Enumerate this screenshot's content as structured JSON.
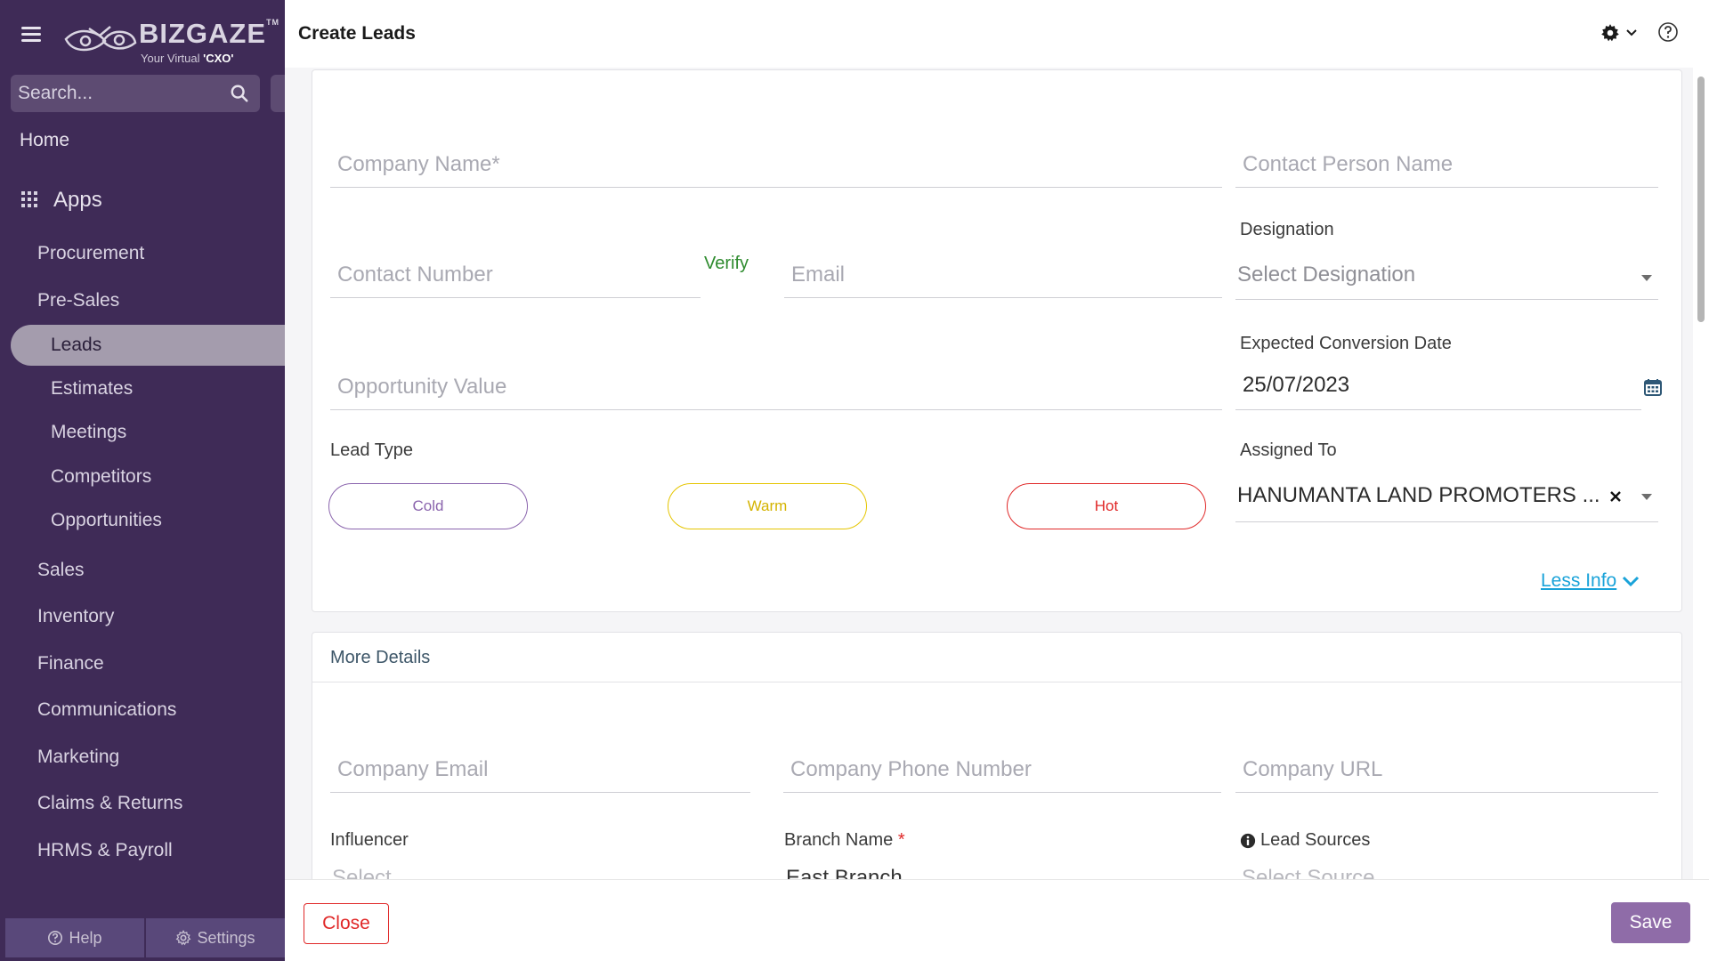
{
  "app": {
    "brand": "BIZGAZE",
    "brand_tm": "TM",
    "tagline_prefix": "Your Virtual ",
    "tagline_highlight": "'CXO'"
  },
  "sidebar": {
    "search_placeholder": "Search...",
    "home": "Home",
    "apps": "Apps",
    "items": [
      {
        "label": "Procurement"
      },
      {
        "label": "Pre-Sales"
      },
      {
        "label": "Leads",
        "active": true
      },
      {
        "label": "Estimates"
      },
      {
        "label": "Meetings"
      },
      {
        "label": "Competitors"
      },
      {
        "label": "Opportunities"
      },
      {
        "label": "Sales"
      },
      {
        "label": "Inventory"
      },
      {
        "label": "Finance"
      },
      {
        "label": "Communications"
      },
      {
        "label": "Marketing"
      },
      {
        "label": "Claims & Returns"
      },
      {
        "label": "HRMS & Payroll"
      }
    ],
    "footer": {
      "help": "Help",
      "settings": "Settings"
    }
  },
  "header": {
    "title": "Create Leads"
  },
  "form": {
    "company_name_placeholder": "Company Name*",
    "contact_person_placeholder": "Contact Person Name",
    "contact_number_placeholder": "Contact Number",
    "verify_label": "Verify",
    "email_placeholder": "Email",
    "designation_label": "Designation",
    "designation_value": "Select Designation",
    "opportunity_value_placeholder": "Opportunity Value",
    "expected_conversion_label": "Expected Conversion Date",
    "expected_conversion_value": "25/07/2023",
    "lead_type_label": "Lead Type",
    "lead_types": [
      "Cold",
      "Warm",
      "Hot"
    ],
    "assigned_to_label": "Assigned To",
    "assigned_to_value": "HANUMANTA LAND PROMOTERS ...",
    "less_info": "Less Info"
  },
  "more_details": {
    "title": "More Details",
    "company_email_placeholder": "Company Email",
    "company_phone_placeholder": "Company Phone Number",
    "company_url_placeholder": "Company URL",
    "influencer_label": "Influencer",
    "influencer_value": "Select",
    "branch_name_label": "Branch Name",
    "branch_required": "*",
    "branch_value": "East Branch",
    "lead_sources_label": "Lead Sources",
    "lead_sources_value": "Select Source"
  },
  "footer": {
    "close": "Close",
    "save": "Save"
  },
  "colors": {
    "sidebar_bg": "#3f2b57",
    "active_item_bg": "#a49cad",
    "accent_save": "#8f6ca8",
    "cold": "#8a64ad",
    "warm": "#e5c500",
    "hot": "#e02828",
    "verify": "#2e8b2e",
    "link": "#1aa3d9"
  }
}
